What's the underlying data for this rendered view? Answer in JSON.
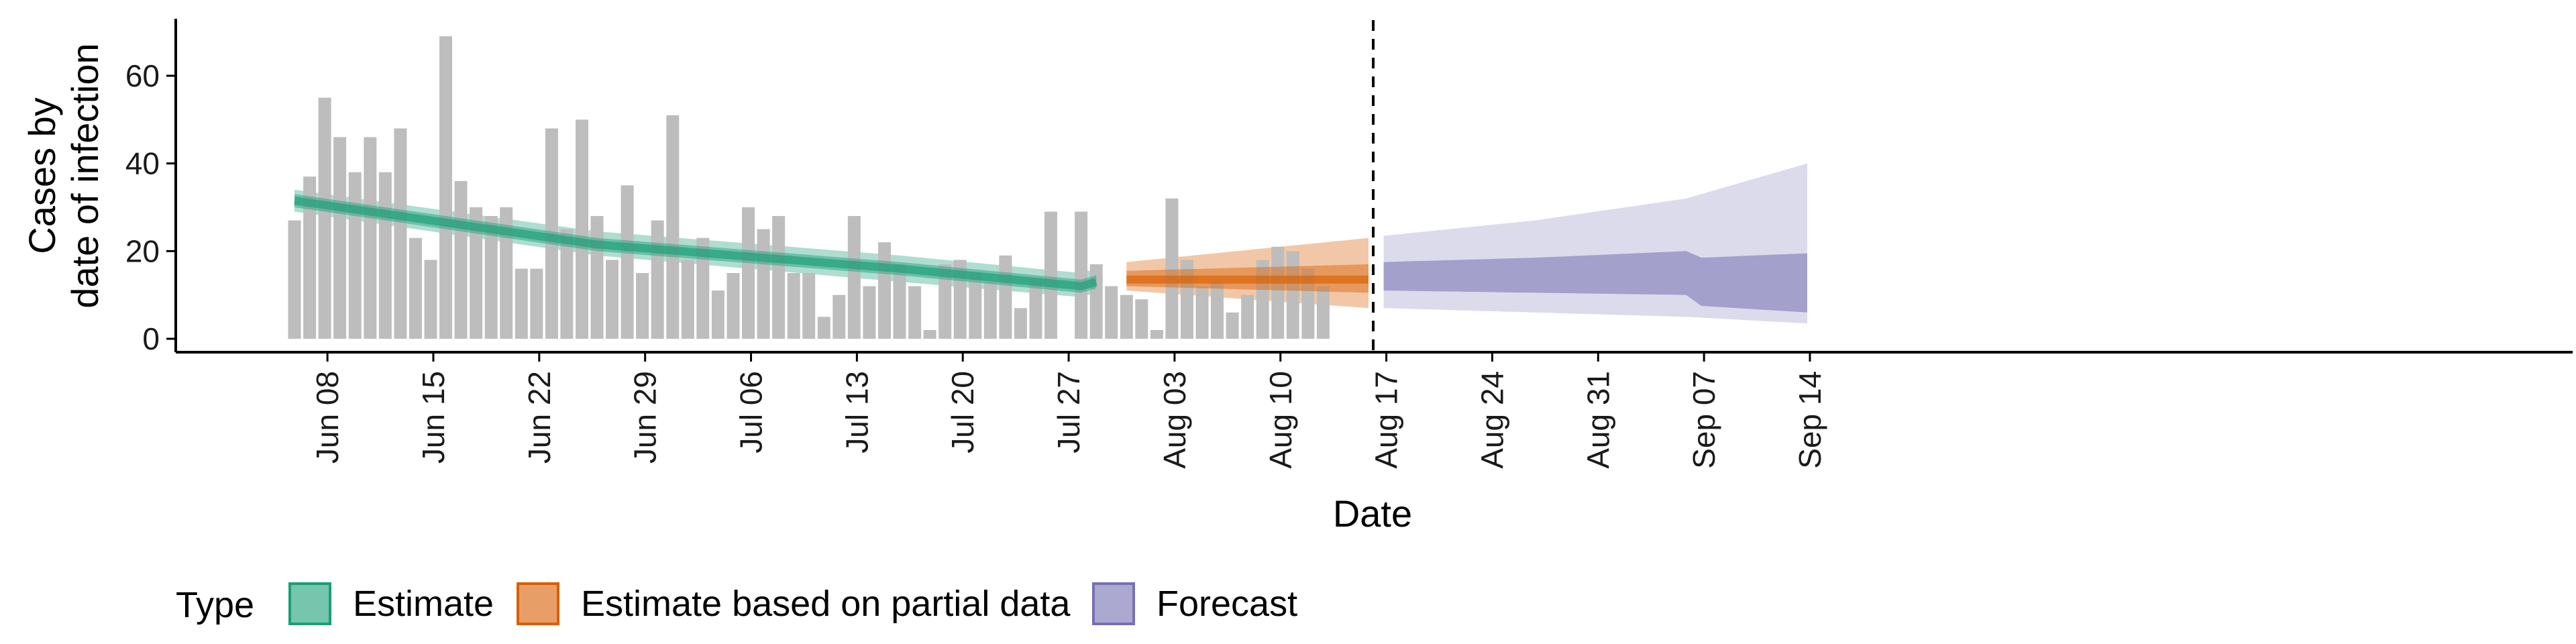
{
  "chart_data": {
    "type": "bar",
    "xlabel": "Date",
    "ylabel_lines": [
      "Cases by",
      "date of infection"
    ],
    "ylim": [
      0,
      73
    ],
    "yticks": [
      0,
      20,
      40,
      60
    ],
    "x_ticks": [
      "Jun 08",
      "Jun 15",
      "Jun 22",
      "Jun 29",
      "Jul 06",
      "Jul 13",
      "Jul 20",
      "Jul 27",
      "Aug 03",
      "Aug 10",
      "Aug 17",
      "Aug 24",
      "Aug 31",
      "Sep 07",
      "Sep 14"
    ],
    "forecast_date": "Aug 16",
    "grid": false,
    "colors": {
      "bars": "#bdbdbd",
      "estimate": "#1b9e77",
      "partial": "#d95f02",
      "forecast": "#7570b3"
    },
    "legend": {
      "title": "Type",
      "position": "bottom",
      "items": [
        {
          "label": "Estimate",
          "key": "estimate"
        },
        {
          "label": "Estimate based on partial data",
          "key": "partial"
        },
        {
          "label": "Forecast",
          "key": "forecast"
        }
      ]
    },
    "bars": {
      "start": "Jun 06",
      "values": [
        27,
        37,
        55,
        46,
        38,
        46,
        38,
        48,
        23,
        18,
        69,
        36,
        30,
        28,
        30,
        16,
        16,
        48,
        25,
        50,
        28,
        18,
        35,
        15,
        27,
        51,
        18,
        23,
        11,
        15,
        30,
        25,
        28,
        15,
        15,
        5,
        10,
        28,
        12,
        22,
        17,
        12,
        2,
        17,
        18,
        15,
        13,
        19,
        7,
        14,
        29,
        0,
        29,
        17,
        12,
        10,
        9,
        2,
        32,
        18,
        12,
        13,
        6,
        10,
        18,
        21,
        20,
        16,
        12
      ]
    },
    "series": [
      {
        "key": "estimate",
        "x_start": "Jun 06",
        "x_end": "Jul 29",
        "median": [
          [
            0,
            31.5
          ],
          [
            20,
            21.5
          ],
          [
            40,
            16.0
          ],
          [
            52,
            12.0
          ],
          [
            53,
            13.0
          ],
          [
            71,
            13.0
          ]
        ],
        "inner": [
          [
            0,
            30,
            33
          ],
          [
            20,
            20,
            23
          ],
          [
            40,
            14.5,
            17.5
          ],
          [
            52,
            10.5,
            13.5
          ],
          [
            53,
            11.5,
            14.5
          ],
          [
            71,
            11.5,
            14.5
          ]
        ],
        "outer": [
          [
            0,
            29,
            34
          ],
          [
            20,
            19,
            24.5
          ],
          [
            40,
            13.0,
            19.0
          ],
          [
            52,
            9.5,
            15.0
          ],
          [
            53,
            10.5,
            16.0
          ],
          [
            71,
            10.5,
            16.5
          ]
        ]
      },
      {
        "key": "partial",
        "x_start": "Jul 31",
        "x_end": "Aug 16",
        "median": [
          [
            0,
            13.5
          ],
          [
            16,
            13.5
          ]
        ],
        "inner": [
          [
            0,
            12,
            15.5
          ],
          [
            16,
            10.5,
            17
          ]
        ],
        "outer": [
          [
            0,
            11,
            17.5
          ],
          [
            16,
            7,
            23
          ]
        ]
      },
      {
        "key": "forecast",
        "x_start": "Aug 17",
        "x_end": "Sep 14",
        "inner": [
          [
            0,
            11,
            17.5
          ],
          [
            10,
            10.5,
            18.5
          ],
          [
            20,
            10.0,
            20.0
          ],
          [
            21,
            7.5,
            18.5
          ],
          [
            28,
            6.0,
            19.5
          ]
        ],
        "outer": [
          [
            0,
            7,
            23.5
          ],
          [
            10,
            6.0,
            27.0
          ],
          [
            20,
            5.0,
            32.0
          ],
          [
            28,
            3.5,
            40.0
          ]
        ]
      }
    ]
  }
}
